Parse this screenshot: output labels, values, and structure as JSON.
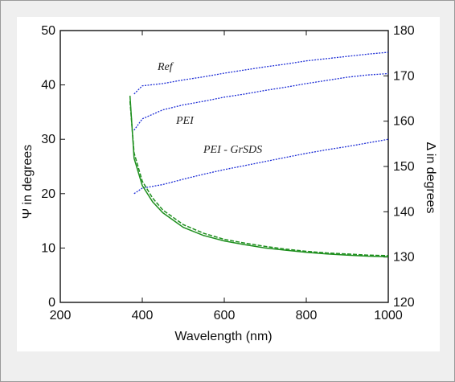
{
  "chart_data": {
    "type": "line",
    "title": "",
    "xlabel": "Wavelength (nm)",
    "ylabel_left": "Ψ in degrees",
    "ylabel_right": "Δ in degrees",
    "xlim": [
      200,
      1000
    ],
    "ylim_left": [
      0,
      50
    ],
    "ylim_right": [
      120,
      180
    ],
    "x_ticks": [
      "200",
      "400",
      "600",
      "800",
      "1000"
    ],
    "y_left_ticks": [
      "0",
      "10",
      "20",
      "30",
      "40",
      "50"
    ],
    "y_right_ticks": [
      "120",
      "130",
      "140",
      "150",
      "160",
      "170",
      "180"
    ],
    "grid": false,
    "series_labels": [
      "Ref",
      "PEI",
      "PEI - GrSDS"
    ],
    "colors": {
      "delta": "#1f2fd6",
      "psi": "#1e8f1e"
    },
    "delta_series": [
      {
        "name": "Ref",
        "axis": "right",
        "color": "#1f2fd6",
        "x": [
          380,
          400,
          450,
          500,
          550,
          600,
          650,
          700,
          750,
          800,
          850,
          900,
          950,
          1000
        ],
        "y": [
          166.0,
          167.8,
          168.3,
          169.1,
          169.8,
          170.6,
          171.3,
          172.0,
          172.6,
          173.3,
          173.8,
          174.3,
          174.8,
          175.2
        ]
      },
      {
        "name": "PEI",
        "axis": "right",
        "color": "#1f2fd6",
        "x": [
          380,
          400,
          450,
          500,
          550,
          600,
          650,
          700,
          750,
          800,
          850,
          900,
          950,
          1000
        ],
        "y": [
          158.0,
          160.5,
          162.5,
          163.6,
          164.4,
          165.3,
          166.0,
          166.8,
          167.5,
          168.3,
          169.0,
          169.7,
          170.2,
          170.5
        ]
      },
      {
        "name": "PEI - GrSDS",
        "axis": "right",
        "color": "#1f2fd6",
        "x": [
          380,
          400,
          450,
          500,
          550,
          600,
          650,
          700,
          750,
          800,
          850,
          900,
          950,
          1000
        ],
        "y": [
          144.0,
          145.2,
          146.0,
          147.2,
          148.3,
          149.3,
          150.2,
          151.1,
          152.0,
          152.9,
          153.7,
          154.4,
          155.2,
          156.0
        ]
      }
    ],
    "psi_series": [
      {
        "axis": "left",
        "color": "#1e8f1e",
        "x": [
          370,
          380,
          400,
          425,
          450,
          500,
          550,
          600,
          650,
          700,
          750,
          800,
          850,
          900,
          950,
          1000
        ],
        "y": [
          38.0,
          26.5,
          21.5,
          18.5,
          16.5,
          13.8,
          12.3,
          11.3,
          10.6,
          10.0,
          9.6,
          9.2,
          8.9,
          8.7,
          8.5,
          8.4
        ]
      },
      {
        "axis": "left",
        "color": "#1e8f1e",
        "x": [
          370,
          380,
          400,
          425,
          450,
          500,
          550,
          600,
          650,
          700,
          750,
          800,
          850,
          900,
          950,
          1000
        ],
        "y": [
          37.0,
          27.5,
          22.3,
          19.2,
          17.0,
          14.3,
          12.7,
          11.6,
          10.9,
          10.3,
          9.8,
          9.4,
          9.1,
          8.9,
          8.7,
          8.6
        ]
      }
    ]
  }
}
